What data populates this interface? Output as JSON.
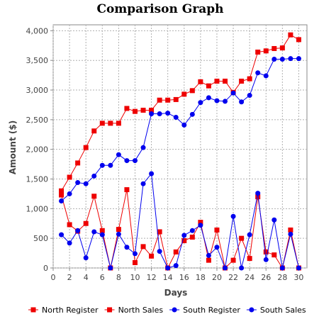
{
  "chart_data": {
    "type": "line",
    "title": "Comparison Graph",
    "xlabel": "Days",
    "ylabel": "Amount ($)",
    "xlim": [
      0,
      31
    ],
    "ylim": [
      0,
      4100
    ],
    "x_ticks": [
      "0",
      "2",
      "4",
      "6",
      "8",
      "10",
      "12",
      "14",
      "16",
      "18",
      "20",
      "22",
      "24",
      "26",
      "28",
      "30"
    ],
    "y_ticks": [
      "0",
      "500",
      "1,000",
      "1,500",
      "2,000",
      "2,500",
      "3,000",
      "3,500",
      "4,000"
    ],
    "grid": true,
    "legend": "bottom",
    "x": [
      1,
      2,
      3,
      4,
      5,
      6,
      7,
      8,
      9,
      10,
      11,
      12,
      13,
      14,
      15,
      16,
      17,
      18,
      19,
      20,
      21,
      22,
      23,
      24,
      25,
      26,
      27,
      28,
      29,
      30
    ],
    "series": [
      {
        "name": "North Register",
        "color": "#ee0000",
        "marker": "square",
        "values": [
          1300,
          1530,
          1770,
          2030,
          2310,
          2440,
          2440,
          2440,
          2690,
          2640,
          2660,
          2660,
          2830,
          2830,
          2840,
          2930,
          2990,
          3140,
          3070,
          3150,
          3150,
          2960,
          3150,
          3190,
          3640,
          3660,
          3700,
          3710,
          3930,
          3850
        ]
      },
      {
        "name": "North Sales",
        "color": "#ee0000",
        "marker": "square",
        "values": [
          1230,
          730,
          620,
          750,
          1210,
          630,
          0,
          650,
          1320,
          90,
          360,
          200,
          610,
          0,
          270,
          460,
          520,
          770,
          130,
          640,
          0,
          130,
          500,
          160,
          1200,
          270,
          220,
          0,
          640,
          0
        ]
      },
      {
        "name": "South Register",
        "color": "#0000ee",
        "marker": "circle",
        "values": [
          1130,
          1250,
          1440,
          1420,
          1550,
          1730,
          1730,
          1910,
          1810,
          1810,
          2030,
          2600,
          2600,
          2610,
          2540,
          2410,
          2590,
          2790,
          2870,
          2820,
          2810,
          2950,
          2800,
          2910,
          3290,
          3240,
          3520,
          3520,
          3530,
          3530
        ]
      },
      {
        "name": "South Sales",
        "color": "#0000ee",
        "marker": "circle",
        "values": [
          560,
          420,
          630,
          170,
          610,
          560,
          0,
          570,
          350,
          240,
          1420,
          1590,
          280,
          0,
          40,
          550,
          630,
          720,
          210,
          350,
          0,
          870,
          0,
          560,
          1260,
          140,
          810,
          0,
          570,
          0
        ]
      }
    ]
  }
}
